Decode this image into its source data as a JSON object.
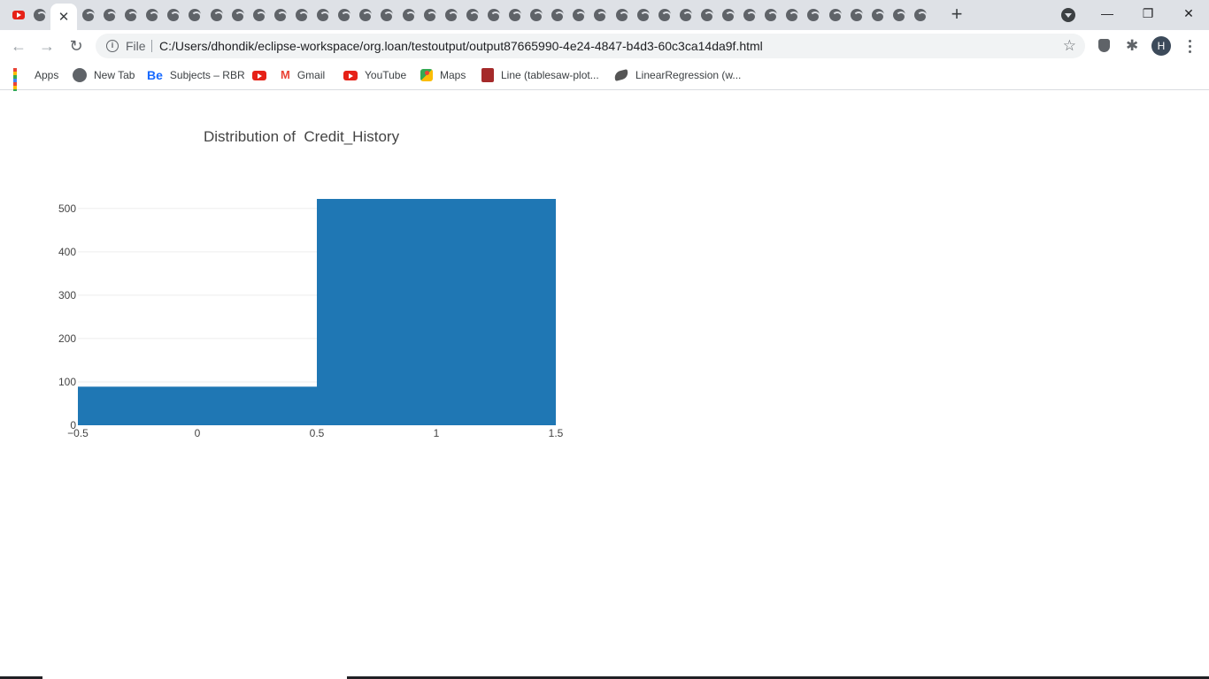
{
  "browser": {
    "tabs": {
      "favicons": [
        "youtube-icon",
        "globe-icon"
      ],
      "close_glyph": "✕",
      "new_tab_glyph": "+"
    },
    "window_controls": {
      "minimize": "—",
      "restore": "❐",
      "close": "✕"
    },
    "toolbar": {
      "back_glyph": "←",
      "forward_glyph": "→",
      "reload_glyph": "↻",
      "info_glyph": "i",
      "scheme_label": "File",
      "url": "C:/Users/dhondik/eclipse-workspace/org.loan/testoutput/output87665990-4e24-4847-b4d3-60c3ca14da9f.html",
      "star_glyph": "☆",
      "puzzle_glyph": "✱",
      "avatar_initial": "H"
    },
    "bookmarks": [
      {
        "label": "Apps",
        "icon": "apps-grid-icon"
      },
      {
        "label": "New Tab",
        "icon": "globe-icon"
      },
      {
        "label": "Subjects – RBR",
        "icon": "behance-icon",
        "icon_text": "Be"
      },
      {
        "label": "",
        "icon": "youtube-icon"
      },
      {
        "label": "Gmail",
        "icon": "gmail-icon",
        "icon_text": "M"
      },
      {
        "label": "YouTube",
        "icon": "youtube-icon"
      },
      {
        "label": "Maps",
        "icon": "maps-icon"
      },
      {
        "label": "Line (tablesaw-plot...",
        "icon": "book-icon"
      },
      {
        "label": "LinearRegression (w...",
        "icon": "bird-icon"
      }
    ]
  },
  "chart_data": {
    "type": "bar",
    "title": "Distribution of  Credit_History",
    "bins": [
      {
        "x0": -0.5,
        "x1": 0.5,
        "count": 89
      },
      {
        "x0": 0.5,
        "x1": 1.5,
        "count": 522
      }
    ],
    "xlim": [
      -0.5,
      1.5
    ],
    "ylim": [
      0,
      522
    ],
    "xticks": [
      "−0.5",
      "0",
      "0.5",
      "1",
      "1.5"
    ],
    "xtick_values": [
      -0.5,
      0,
      0.5,
      1,
      1.5
    ],
    "yticks": [
      "0",
      "100",
      "200",
      "300",
      "400",
      "500"
    ],
    "ytick_values": [
      0,
      100,
      200,
      300,
      400,
      500
    ],
    "bar_color": "#1f77b4",
    "grid": true
  }
}
